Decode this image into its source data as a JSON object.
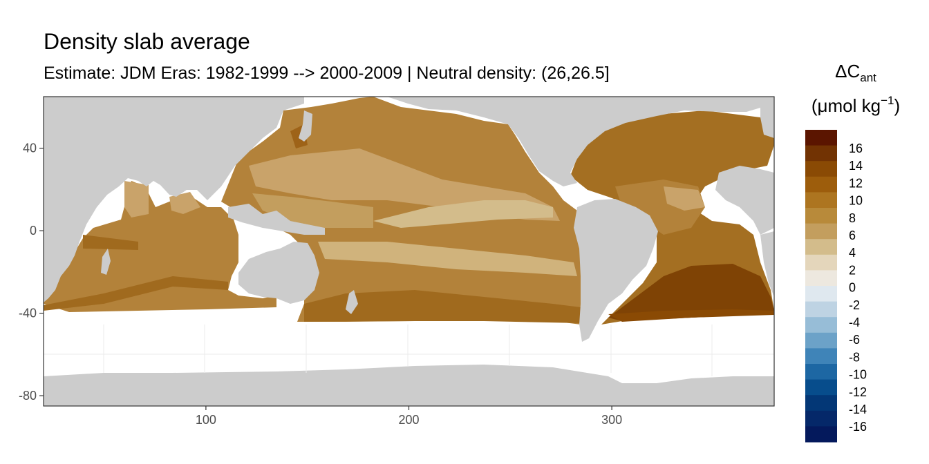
{
  "title": "Density slab average",
  "subtitle": "Estimate: JDM Eras: 1982-1999 --> 2000-2009 | Neutral density: (26,26.5]",
  "map": {
    "x_ticks": [
      100,
      200,
      300
    ],
    "y_ticks": [
      40,
      0,
      -40,
      -80
    ],
    "xlim": [
      20,
      380
    ],
    "ylim": [
      -85,
      65
    ],
    "land_color": "#cccccc",
    "no_data_color": "#ffffff"
  },
  "legend": {
    "title_main": "ΔC",
    "title_sub": "ant",
    "unit_prefix": "(μmol kg",
    "unit_sup": "−1",
    "unit_suffix": ")",
    "labels": [
      "16",
      "14",
      "12",
      "10",
      "8",
      "6",
      "4",
      "2",
      "0",
      "-2",
      "-4",
      "-6",
      "-8",
      "-10",
      "-12",
      "-14",
      "-16"
    ],
    "colors": [
      "#5b1500",
      "#723303",
      "#8a4a04",
      "#9d5d0c",
      "#ad7520",
      "#b88a3a",
      "#c39e5e",
      "#d3bc8b",
      "#e4d6bb",
      "#ede8df",
      "#dfe8ef",
      "#bed3e3",
      "#97bdd7",
      "#6ca2c8",
      "#3f84b8",
      "#1d67a3",
      "#074d8c",
      "#033776",
      "#052869",
      "#04195c"
    ]
  }
}
